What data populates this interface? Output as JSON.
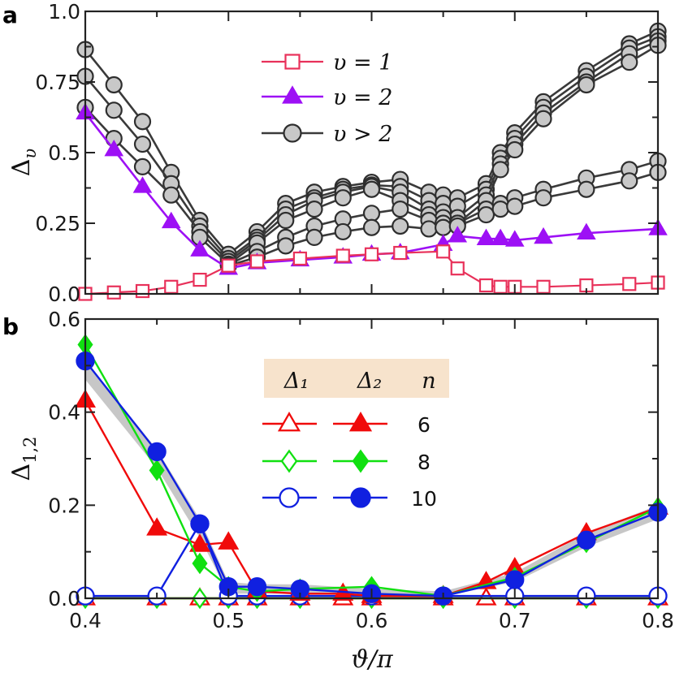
{
  "colors": {
    "gray": "#8c8c8c",
    "gray_fill": "#c8c8c8",
    "purple": "#9d10f5",
    "pink": "#e8315a",
    "red": "#f00a0a",
    "green": "#10e010",
    "blue": "#1020e0",
    "legend_bg": "#f7e3cc"
  },
  "chart_data": [
    {
      "panel": "a",
      "type": "line",
      "ylabel": {
        "base": "Δ",
        "sub": "υ"
      },
      "xlim": [
        0.4,
        0.8
      ],
      "ylim": [
        0,
        1.0
      ],
      "yticks": [
        0,
        0.25,
        0.5,
        0.75,
        1.0
      ],
      "ytick_labels": [
        "0.0",
        "0.25",
        "0.5",
        "0.75",
        "1.0"
      ],
      "legend": [
        {
          "key": "v1",
          "text": "υ = 1"
        },
        {
          "key": "v2",
          "text": "υ = 2"
        },
        {
          "key": "vgt2",
          "text": "υ > 2"
        }
      ],
      "series": [
        {
          "name": "υ = 1",
          "style": "v1",
          "x": [
            0.4,
            0.42,
            0.44,
            0.46,
            0.48,
            0.5,
            0.52,
            0.55,
            0.58,
            0.6,
            0.62,
            0.65,
            0.66,
            0.68,
            0.69,
            0.7,
            0.72,
            0.75,
            0.78,
            0.8
          ],
          "y": [
            0.0,
            0.005,
            0.01,
            0.025,
            0.05,
            0.1,
            0.115,
            0.125,
            0.135,
            0.14,
            0.145,
            0.15,
            0.09,
            0.03,
            0.025,
            0.025,
            0.025,
            0.03,
            0.035,
            0.04
          ]
        },
        {
          "name": "υ = 2",
          "style": "v2",
          "x": [
            0.4,
            0.42,
            0.44,
            0.46,
            0.48,
            0.5,
            0.52,
            0.55,
            0.58,
            0.6,
            0.62,
            0.65,
            0.66,
            0.68,
            0.69,
            0.7,
            0.72,
            0.75,
            0.8
          ],
          "y": [
            0.64,
            0.51,
            0.38,
            0.255,
            0.155,
            0.09,
            0.11,
            0.12,
            0.13,
            0.14,
            0.145,
            0.175,
            0.205,
            0.195,
            0.195,
            0.19,
            0.2,
            0.215,
            0.23
          ]
        },
        {
          "name": "υ > 2",
          "style": "vgt2",
          "x": [
            0.4,
            0.42,
            0.44,
            0.46,
            0.48,
            0.5,
            0.52,
            0.54,
            0.56,
            0.58,
            0.6,
            0.62,
            0.64,
            0.65,
            0.66,
            0.68,
            0.69,
            0.7,
            0.72,
            0.75,
            0.78,
            0.8
          ],
          "y": [
            0.865,
            0.74,
            0.61,
            0.43,
            0.26,
            0.14,
            0.22,
            0.32,
            0.36,
            0.38,
            0.395,
            0.405,
            0.36,
            0.35,
            0.34,
            0.39,
            0.5,
            0.57,
            0.68,
            0.79,
            0.885,
            0.93
          ]
        },
        {
          "name": "υ > 2",
          "style": "vgt2",
          "x": [
            0.4,
            0.42,
            0.44,
            0.46,
            0.48,
            0.5,
            0.52,
            0.54,
            0.56,
            0.58,
            0.6,
            0.62,
            0.64,
            0.65,
            0.66,
            0.68,
            0.69,
            0.7,
            0.72,
            0.75,
            0.78,
            0.8
          ],
          "y": [
            0.77,
            0.65,
            0.53,
            0.39,
            0.24,
            0.125,
            0.2,
            0.3,
            0.34,
            0.37,
            0.385,
            0.38,
            0.33,
            0.32,
            0.31,
            0.37,
            0.48,
            0.55,
            0.66,
            0.77,
            0.87,
            0.91
          ]
        },
        {
          "name": "υ > 2",
          "style": "vgt2",
          "x": [
            0.4,
            0.42,
            0.44,
            0.46,
            0.48,
            0.5,
            0.52,
            0.54,
            0.56,
            0.58,
            0.6,
            0.62,
            0.64,
            0.65,
            0.66,
            0.68,
            0.69,
            0.7,
            0.72,
            0.75,
            0.78,
            0.8
          ],
          "y": [
            0.66,
            0.55,
            0.45,
            0.35,
            0.22,
            0.115,
            0.19,
            0.28,
            0.33,
            0.36,
            0.38,
            0.36,
            0.3,
            0.29,
            0.27,
            0.35,
            0.46,
            0.53,
            0.64,
            0.75,
            0.85,
            0.895
          ]
        },
        {
          "name": "υ > 2",
          "style": "vgt2",
          "x": [
            0.48,
            0.5,
            0.52,
            0.54,
            0.56,
            0.58,
            0.6,
            0.62,
            0.64,
            0.65,
            0.66,
            0.68,
            0.69,
            0.7,
            0.72,
            0.75,
            0.78,
            0.8
          ],
          "y": [
            0.2,
            0.105,
            0.18,
            0.26,
            0.3,
            0.34,
            0.37,
            0.33,
            0.28,
            0.27,
            0.25,
            0.33,
            0.44,
            0.51,
            0.62,
            0.74,
            0.82,
            0.88
          ]
        },
        {
          "name": "υ > 2",
          "style": "vgt2",
          "x": [
            0.5,
            0.52,
            0.54,
            0.56,
            0.58,
            0.6,
            0.62,
            0.64,
            0.65,
            0.66,
            0.68,
            0.69,
            0.7,
            0.72,
            0.75,
            0.78,
            0.8
          ],
          "y": [
            0.105,
            0.15,
            0.2,
            0.24,
            0.265,
            0.285,
            0.3,
            0.26,
            0.25,
            0.25,
            0.3,
            0.32,
            0.34,
            0.37,
            0.41,
            0.44,
            0.47
          ]
        },
        {
          "name": "υ > 2",
          "style": "vgt2",
          "x": [
            0.5,
            0.52,
            0.54,
            0.56,
            0.58,
            0.6,
            0.62,
            0.64,
            0.65,
            0.66,
            0.68,
            0.69,
            0.7,
            0.72,
            0.75,
            0.78,
            0.8
          ],
          "y": [
            0.1,
            0.13,
            0.17,
            0.2,
            0.22,
            0.235,
            0.24,
            0.23,
            0.235,
            0.24,
            0.28,
            0.3,
            0.31,
            0.34,
            0.37,
            0.4,
            0.43
          ]
        }
      ]
    },
    {
      "panel": "b",
      "type": "line",
      "xlabel": {
        "text": "ϑ/π"
      },
      "ylabel": {
        "base": "Δ",
        "sub": "1,2"
      },
      "xlim": [
        0.4,
        0.8
      ],
      "ylim": [
        0,
        0.6
      ],
      "xticks": [
        0.4,
        0.5,
        0.6,
        0.7,
        0.8
      ],
      "xtick_labels": [
        "0.4",
        "0.5",
        "0.6",
        "0.7",
        "0.8"
      ],
      "yticks": [
        0,
        0.2,
        0.4,
        0.6
      ],
      "ytick_labels": [
        "0.0",
        "0.2",
        "0.4",
        "0.6"
      ],
      "legend": {
        "headers": [
          "Δ₁",
          "Δ₂",
          "n"
        ],
        "rows": [
          {
            "n": "6",
            "color": "red",
            "marker": "triangle"
          },
          {
            "n": "8",
            "color": "green",
            "marker": "diamond"
          },
          {
            "n": "10",
            "color": "blue",
            "marker": "circle"
          }
        ]
      },
      "band": {
        "x": [
          0.4,
          0.45,
          0.48,
          0.5,
          0.52,
          0.55,
          0.6,
          0.65,
          0.7,
          0.75,
          0.8
        ],
        "lower": [
          0.47,
          0.28,
          0.13,
          0.01,
          0.01,
          0.01,
          0.005,
          0.005,
          0.035,
          0.11,
          0.17
        ],
        "upper": [
          0.51,
          0.32,
          0.17,
          0.035,
          0.03,
          0.03,
          0.02,
          0.015,
          0.055,
          0.14,
          0.2
        ]
      },
      "series": [
        {
          "name": "Δ₁ n=6",
          "color": "red",
          "marker": "triangle",
          "filled": false,
          "x": [
            0.4,
            0.45,
            0.48,
            0.5,
            0.52,
            0.55,
            0.58,
            0.6,
            0.65,
            0.68,
            0.7,
            0.75,
            0.8
          ],
          "y": [
            0.0,
            0.0,
            0.0,
            0.0,
            0.0,
            0.0,
            0.0,
            0.0,
            0.0,
            0.0,
            0.0,
            0.0,
            0.0
          ]
        },
        {
          "name": "Δ₂ n=6",
          "color": "red",
          "marker": "triangle",
          "filled": true,
          "x": [
            0.4,
            0.45,
            0.48,
            0.5,
            0.52,
            0.55,
            0.58,
            0.6,
            0.65,
            0.68,
            0.7,
            0.75,
            0.8
          ],
          "y": [
            0.425,
            0.15,
            0.115,
            0.12,
            0.015,
            0.01,
            0.01,
            0.005,
            0.005,
            0.035,
            0.065,
            0.14,
            0.195
          ]
        },
        {
          "name": "Δ₁ n=8",
          "color": "green",
          "marker": "diamond",
          "filled": false,
          "x": [
            0.4,
            0.45,
            0.48,
            0.5,
            0.52,
            0.55,
            0.6,
            0.65,
            0.7,
            0.75,
            0.8
          ],
          "y": [
            0.0,
            0.0,
            0.0,
            0.0,
            0.0,
            0.0,
            0.0,
            0.0,
            0.0,
            0.0,
            0.0
          ]
        },
        {
          "name": "Δ₂ n=8",
          "color": "green",
          "marker": "diamond",
          "filled": true,
          "x": [
            0.4,
            0.45,
            0.48,
            0.5,
            0.52,
            0.55,
            0.6,
            0.65,
            0.7,
            0.75,
            0.8
          ],
          "y": [
            0.545,
            0.275,
            0.075,
            0.025,
            0.015,
            0.02,
            0.025,
            0.005,
            0.045,
            0.12,
            0.195
          ]
        },
        {
          "name": "Δ₁ n=10",
          "color": "blue",
          "marker": "circle",
          "filled": false,
          "x": [
            0.4,
            0.45,
            0.48,
            0.5,
            0.52,
            0.55,
            0.6,
            0.65,
            0.7,
            0.75,
            0.8
          ],
          "y": [
            0.005,
            0.005,
            0.16,
            0.005,
            0.005,
            0.005,
            0.005,
            0.005,
            0.005,
            0.005,
            0.005
          ]
        },
        {
          "name": "Δ₂ n=10",
          "color": "blue",
          "marker": "circle",
          "filled": true,
          "x": [
            0.4,
            0.45,
            0.48,
            0.5,
            0.52,
            0.55,
            0.6,
            0.65,
            0.7,
            0.75,
            0.8
          ],
          "y": [
            0.51,
            0.315,
            0.16,
            0.025,
            0.025,
            0.02,
            0.01,
            0.005,
            0.04,
            0.125,
            0.185
          ]
        }
      ]
    }
  ],
  "panel_labels": [
    "a",
    "b"
  ]
}
